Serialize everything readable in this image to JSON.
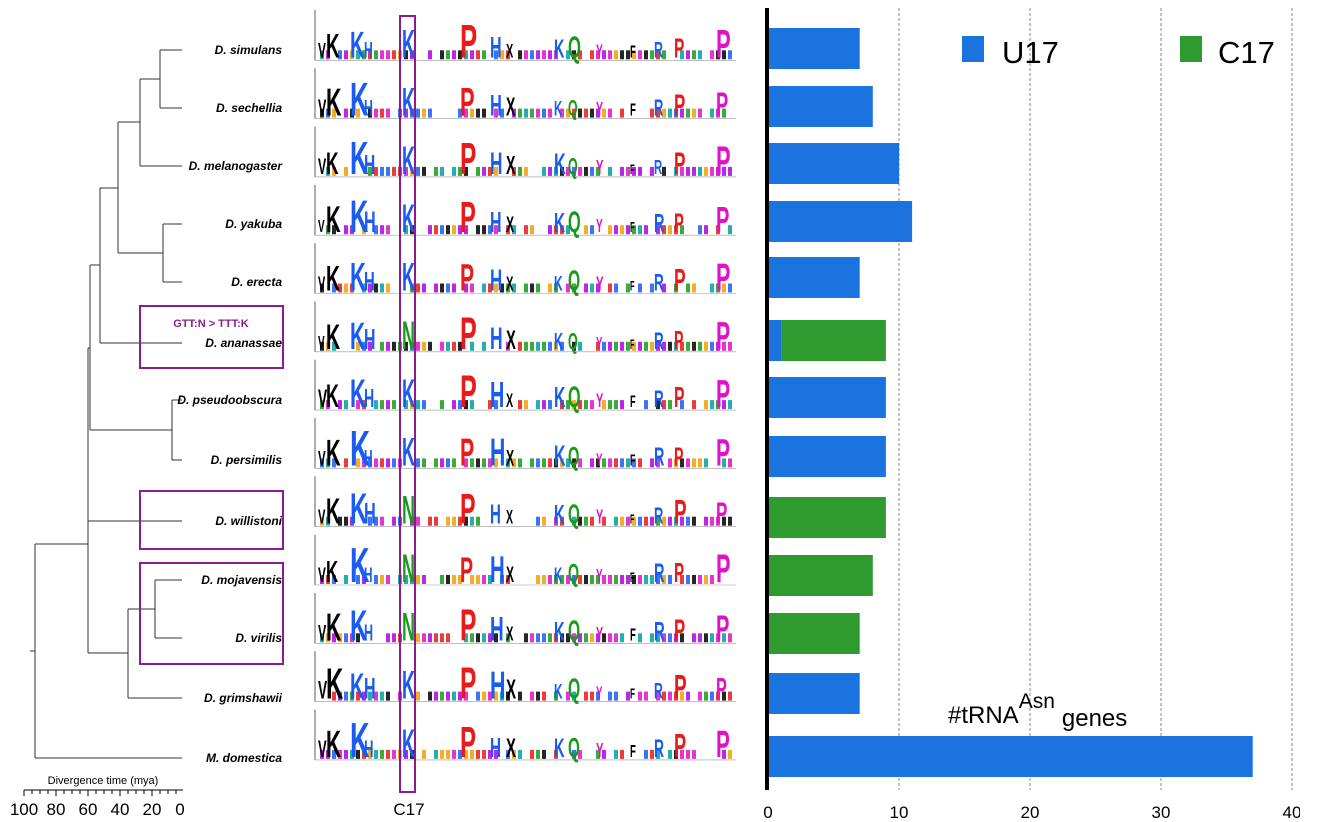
{
  "colors": {
    "u17": "#1b73e0",
    "c17": "#2f9a2f",
    "highlight": "#8a1c8f",
    "tree": "#333333"
  },
  "tree": {
    "axis_label": "Divergence time (mya)",
    "ticks": [
      "100",
      "80",
      "60",
      "40",
      "20",
      "0"
    ],
    "species": [
      "D. simulans",
      "D. sechellia",
      "D. melanogaster",
      "D. yakuba",
      "D. erecta",
      "D. ananassae",
      "D. pseudoobscura",
      "D. persimilis",
      "D. willistoni",
      "D. mojavensis",
      "D. virilis",
      "D. grimshawii",
      "M. domestica"
    ],
    "annotation": "GTT:N > TTT:K"
  },
  "logos": {
    "highlight_label": "C17",
    "row_count": 13
  },
  "chart_data": {
    "type": "bar",
    "orientation": "horizontal",
    "stacked": true,
    "categories": [
      "D. simulans",
      "D. sechellia",
      "D. melanogaster",
      "D. yakuba",
      "D. erecta",
      "D. ananassae",
      "D. pseudoobscura",
      "D. persimilis",
      "D. willistoni",
      "D. mojavensis",
      "D. virilis",
      "D. grimshawii",
      "M. domestica"
    ],
    "series": [
      {
        "name": "U17",
        "color": "#1b73e0",
        "values": [
          7,
          8,
          10,
          11,
          7,
          1,
          9,
          9,
          0,
          0,
          0,
          7,
          37
        ]
      },
      {
        "name": "C17",
        "color": "#2f9a2f",
        "values": [
          0,
          0,
          0,
          0,
          0,
          8,
          0,
          0,
          9,
          8,
          7,
          0,
          0
        ]
      }
    ],
    "xlim": [
      0,
      40
    ],
    "xticks": [
      "0",
      "10",
      "20",
      "30",
      "40"
    ],
    "annotation_text": "#tRNA",
    "annotation_sup": "Asn",
    "annotation_suffix": "genes",
    "grid": "vertical dashed",
    "legend_position": "top-right"
  }
}
